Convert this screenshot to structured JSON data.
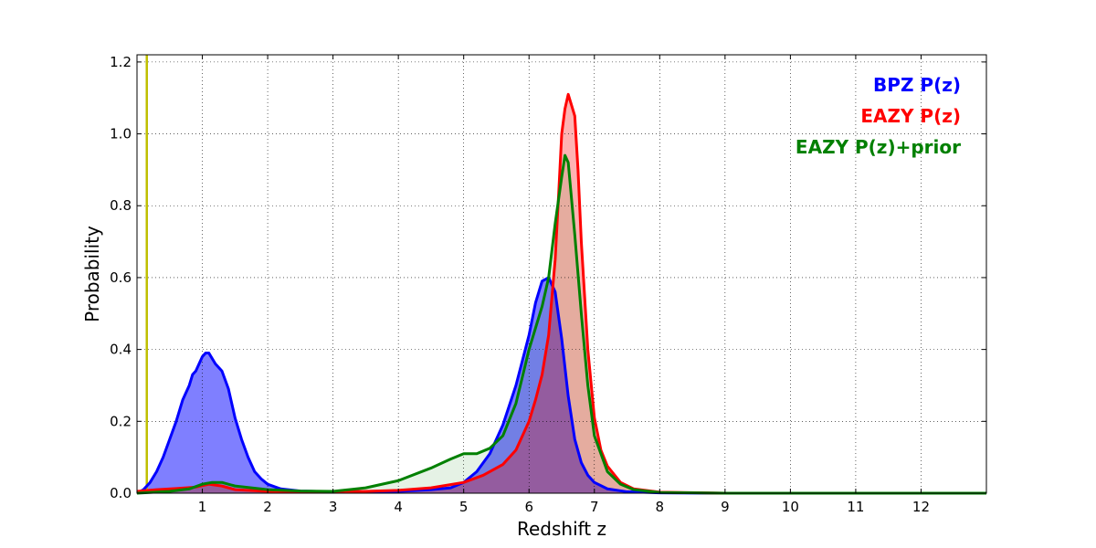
{
  "chart_data": {
    "type": "line",
    "title": "",
    "xlabel": "Redshift z",
    "ylabel": "Probability",
    "xlim": [
      0,
      13
    ],
    "ylim": [
      0,
      1.22
    ],
    "grid": true,
    "legend_position": "top-right",
    "x_ticks": [
      "1",
      "2",
      "3",
      "4",
      "5",
      "6",
      "7",
      "8",
      "9",
      "10",
      "11",
      "12"
    ],
    "y_ticks": [
      "0.0",
      "0.2",
      "0.4",
      "0.6",
      "0.8",
      "1.0",
      "1.2"
    ],
    "vline": {
      "x": 0.15,
      "color": "#bfbf00"
    },
    "series": [
      {
        "name": "BPZ P(z)",
        "color": "#0000ff",
        "fill": "#0000ff",
        "fill_opacity": 0.5,
        "x": [
          0,
          0.1,
          0.2,
          0.3,
          0.4,
          0.5,
          0.6,
          0.7,
          0.8,
          0.85,
          0.9,
          1.0,
          1.05,
          1.1,
          1.2,
          1.3,
          1.4,
          1.5,
          1.6,
          1.7,
          1.8,
          1.9,
          2.0,
          2.2,
          2.5,
          3.0,
          3.5,
          4.0,
          4.5,
          4.8,
          5.0,
          5.2,
          5.4,
          5.6,
          5.8,
          5.9,
          6.0,
          6.1,
          6.2,
          6.3,
          6.4,
          6.5,
          6.6,
          6.7,
          6.8,
          6.9,
          7.0,
          7.2,
          7.5,
          8.0,
          9.0,
          13.0
        ],
        "y": [
          0.0,
          0.01,
          0.03,
          0.06,
          0.1,
          0.15,
          0.2,
          0.26,
          0.3,
          0.33,
          0.34,
          0.38,
          0.39,
          0.39,
          0.36,
          0.34,
          0.29,
          0.21,
          0.15,
          0.1,
          0.06,
          0.04,
          0.025,
          0.012,
          0.006,
          0.004,
          0.004,
          0.005,
          0.01,
          0.015,
          0.03,
          0.06,
          0.11,
          0.19,
          0.3,
          0.37,
          0.44,
          0.53,
          0.59,
          0.6,
          0.56,
          0.43,
          0.27,
          0.15,
          0.085,
          0.05,
          0.03,
          0.012,
          0.004,
          0.001,
          0.0,
          0.0
        ]
      },
      {
        "name": "EAZY P(z)",
        "color": "#ff0000",
        "fill": "#ff0000",
        "fill_opacity": 0.3,
        "x": [
          0,
          0.3,
          0.6,
          0.9,
          1.1,
          1.3,
          1.5,
          2.0,
          2.5,
          3.0,
          3.5,
          4.0,
          4.5,
          5.0,
          5.3,
          5.6,
          5.8,
          6.0,
          6.1,
          6.2,
          6.3,
          6.4,
          6.45,
          6.5,
          6.55,
          6.6,
          6.65,
          6.7,
          6.75,
          6.8,
          6.85,
          6.9,
          7.0,
          7.1,
          7.2,
          7.4,
          7.6,
          8.0,
          9.0,
          13.0
        ],
        "y": [
          0.005,
          0.01,
          0.013,
          0.017,
          0.025,
          0.02,
          0.01,
          0.005,
          0.004,
          0.004,
          0.005,
          0.008,
          0.015,
          0.03,
          0.05,
          0.08,
          0.12,
          0.2,
          0.26,
          0.33,
          0.44,
          0.65,
          0.82,
          1.0,
          1.07,
          1.11,
          1.08,
          1.05,
          0.9,
          0.7,
          0.55,
          0.4,
          0.21,
          0.12,
          0.075,
          0.03,
          0.012,
          0.003,
          0.0,
          0.0
        ]
      },
      {
        "name": "EAZY P(z)+prior",
        "color": "#008000",
        "fill": "#008000",
        "fill_opacity": 0.1,
        "x": [
          0,
          0.5,
          0.8,
          1.0,
          1.15,
          1.3,
          1.4,
          1.5,
          2.0,
          2.5,
          3.0,
          3.5,
          4.0,
          4.5,
          4.8,
          5.0,
          5.2,
          5.4,
          5.6,
          5.8,
          6.0,
          6.1,
          6.2,
          6.3,
          6.4,
          6.5,
          6.55,
          6.6,
          6.7,
          6.8,
          6.9,
          7.0,
          7.2,
          7.4,
          7.6,
          8.0,
          9.0,
          13.0
        ],
        "y": [
          0.0,
          0.005,
          0.012,
          0.025,
          0.03,
          0.03,
          0.025,
          0.02,
          0.01,
          0.006,
          0.005,
          0.015,
          0.035,
          0.07,
          0.095,
          0.11,
          0.11,
          0.125,
          0.16,
          0.25,
          0.4,
          0.46,
          0.52,
          0.6,
          0.75,
          0.88,
          0.94,
          0.92,
          0.72,
          0.5,
          0.3,
          0.16,
          0.06,
          0.025,
          0.01,
          0.002,
          0.0,
          0.0
        ]
      }
    ]
  }
}
